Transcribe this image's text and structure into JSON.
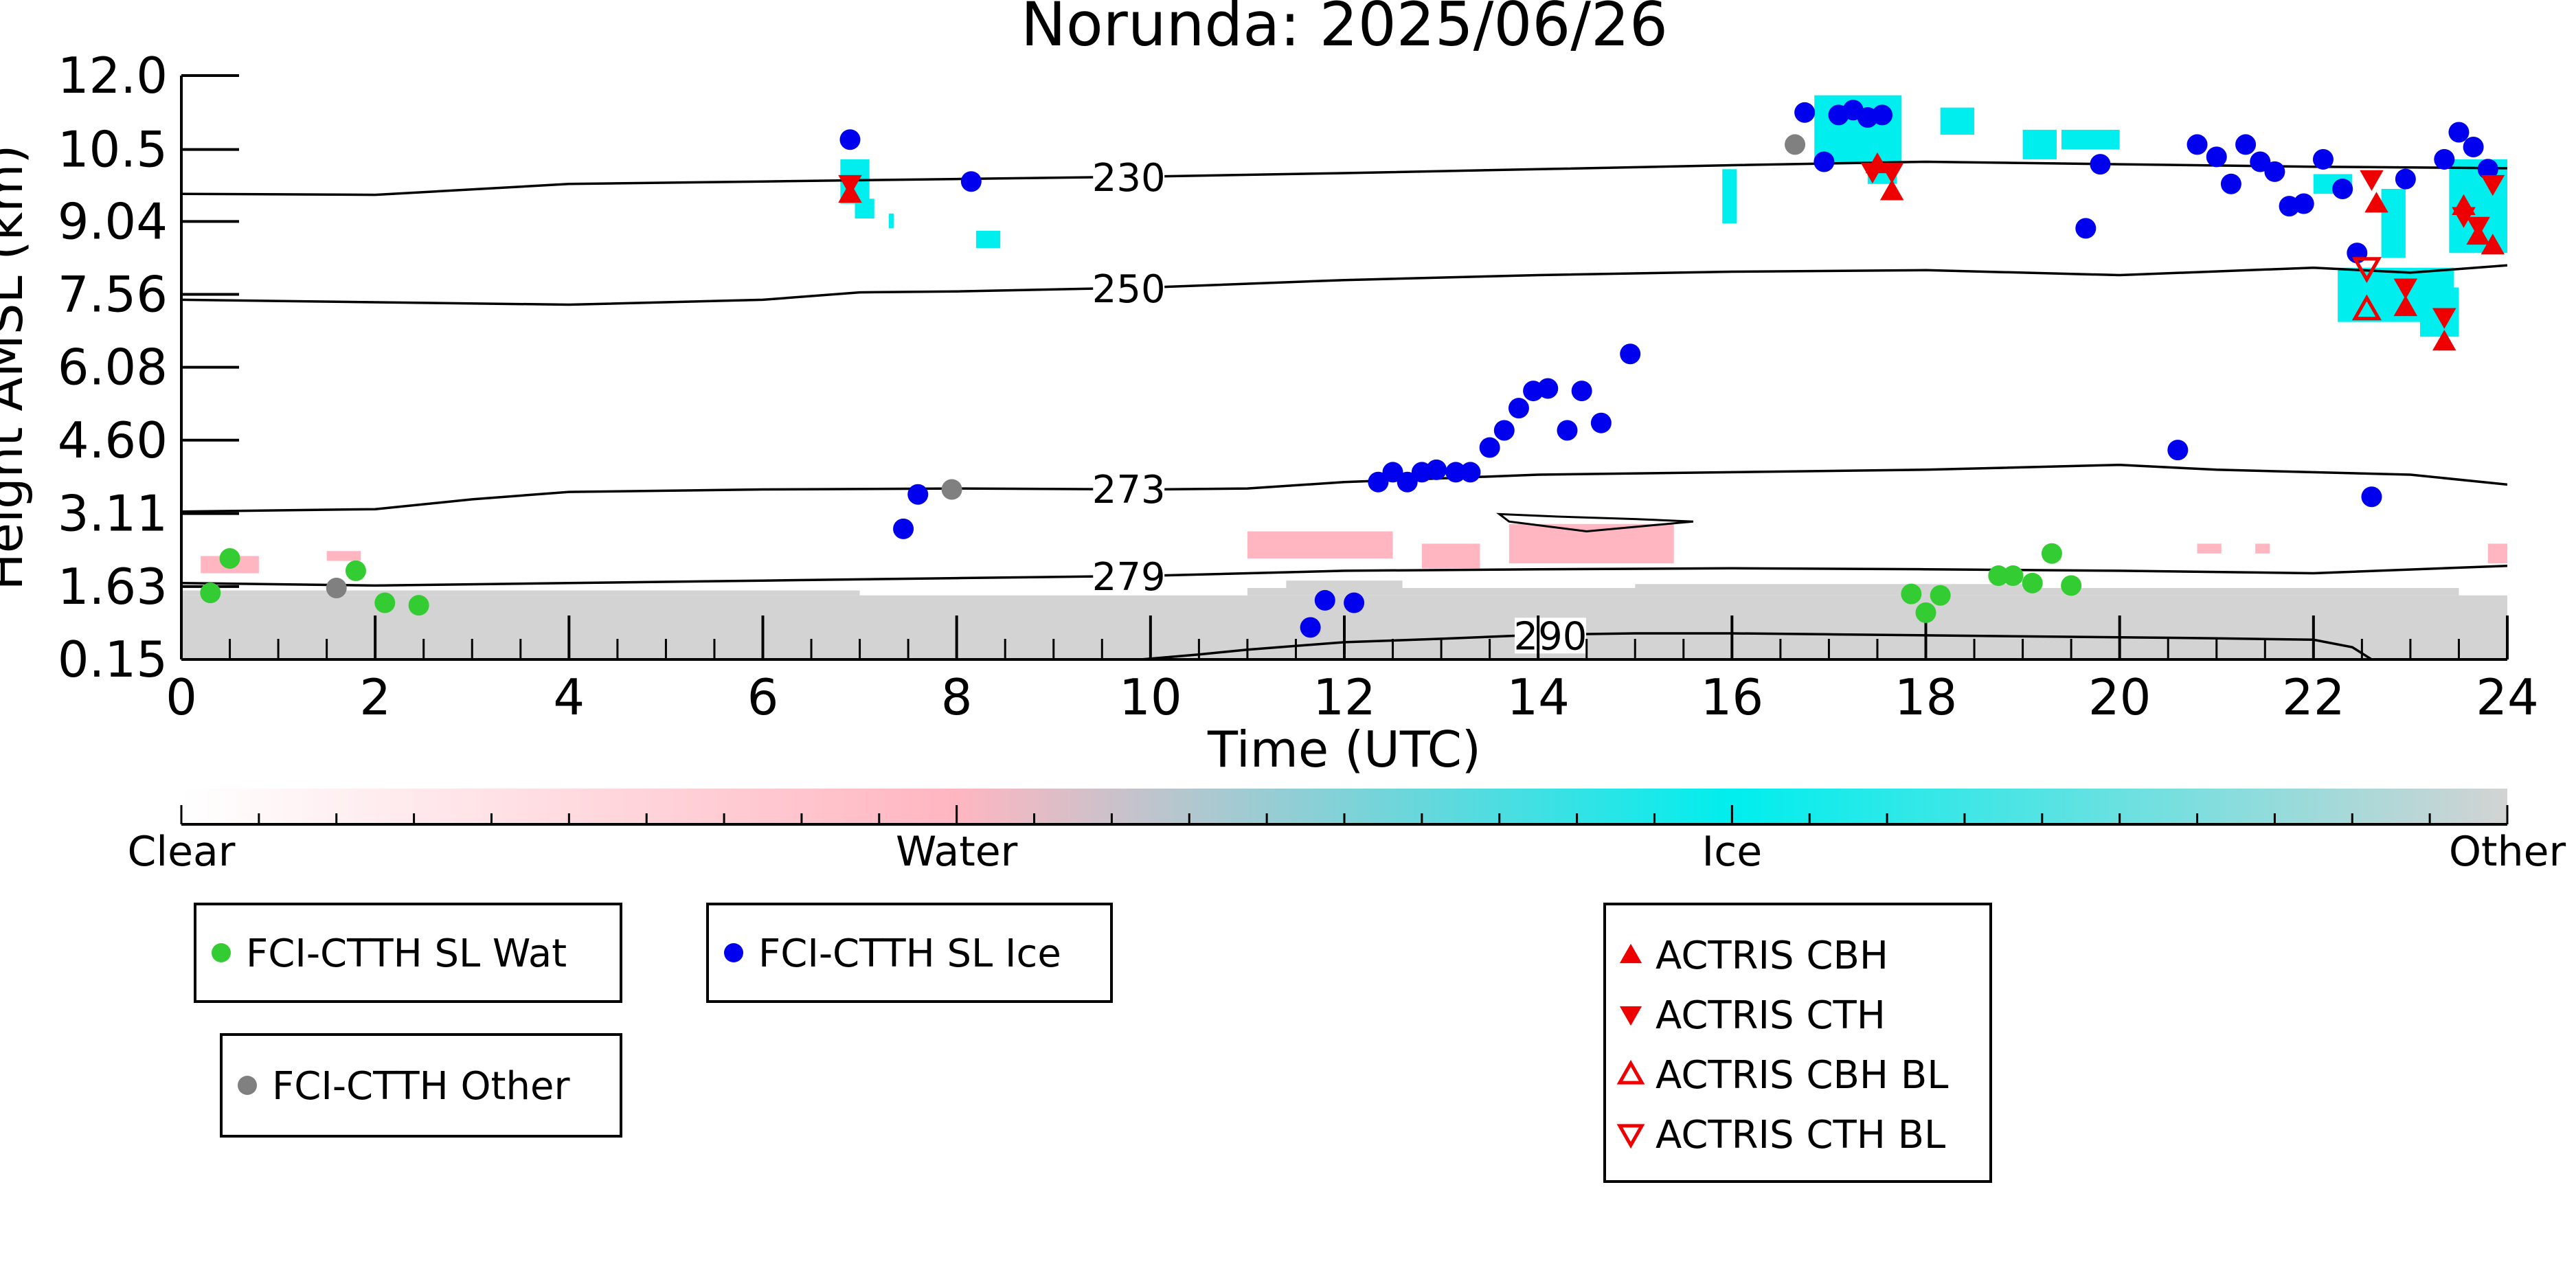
{
  "chart_data": {
    "type": "scatter",
    "title": "Norunda: 2025/06/26",
    "xlabel": "Time (UTC)",
    "ylabel": "Height AMSL (km)",
    "xlim": [
      0,
      24
    ],
    "ylim": [
      0.15,
      12.0
    ],
    "x_ticks": [
      "0",
      "2",
      "4",
      "6",
      "8",
      "10",
      "12",
      "14",
      "16",
      "18",
      "20",
      "22",
      "24"
    ],
    "y_ticks": [
      {
        "value": 0.15,
        "label": "0.15"
      },
      {
        "value": 1.63,
        "label": "1.63"
      },
      {
        "value": 3.11,
        "label": "3.11"
      },
      {
        "value": 4.6,
        "label": "4.60"
      },
      {
        "value": 6.08,
        "label": "6.08"
      },
      {
        "value": 7.56,
        "label": "7.56"
      },
      {
        "value": 9.04,
        "label": "9.04"
      },
      {
        "value": 10.5,
        "label": "10.5"
      },
      {
        "value": 12.0,
        "label": "12.0"
      }
    ],
    "grid": false,
    "contours": [
      {
        "label": "230",
        "label_x": 9.45,
        "points": [
          [
            0,
            9.6
          ],
          [
            2,
            9.58
          ],
          [
            4,
            9.8
          ],
          [
            6,
            9.85
          ],
          [
            8,
            9.9
          ],
          [
            10,
            9.95
          ],
          [
            12,
            10.02
          ],
          [
            14,
            10.1
          ],
          [
            16,
            10.18
          ],
          [
            18,
            10.25
          ],
          [
            20,
            10.2
          ],
          [
            22,
            10.15
          ],
          [
            24,
            10.12
          ]
        ]
      },
      {
        "label": "250",
        "label_x": 9.45,
        "points": [
          [
            0,
            7.45
          ],
          [
            2,
            7.4
          ],
          [
            4,
            7.35
          ],
          [
            6,
            7.45
          ],
          [
            7,
            7.6
          ],
          [
            8,
            7.62
          ],
          [
            10,
            7.7
          ],
          [
            12,
            7.85
          ],
          [
            14,
            7.95
          ],
          [
            16,
            8.02
          ],
          [
            18,
            8.05
          ],
          [
            20,
            7.95
          ],
          [
            22,
            8.1
          ],
          [
            23,
            8.0
          ],
          [
            24,
            8.15
          ]
        ]
      },
      {
        "label": "273",
        "label_x": 9.45,
        "points": [
          [
            0,
            3.15
          ],
          [
            2,
            3.2
          ],
          [
            3,
            3.4
          ],
          [
            4,
            3.55
          ],
          [
            6,
            3.6
          ],
          [
            8,
            3.62
          ],
          [
            10,
            3.6
          ],
          [
            11,
            3.62
          ],
          [
            12,
            3.75
          ],
          [
            14,
            3.9
          ],
          [
            16,
            3.95
          ],
          [
            18,
            4.0
          ],
          [
            20,
            4.1
          ],
          [
            21,
            4.0
          ],
          [
            23,
            3.9
          ],
          [
            24,
            3.7
          ]
        ]
      },
      {
        "label": "279",
        "label_x": 9.45,
        "points": [
          [
            0,
            1.7
          ],
          [
            2,
            1.65
          ],
          [
            4,
            1.7
          ],
          [
            6,
            1.75
          ],
          [
            8,
            1.8
          ],
          [
            10,
            1.85
          ],
          [
            12,
            1.95
          ],
          [
            14,
            1.98
          ],
          [
            16,
            2.0
          ],
          [
            18,
            1.98
          ],
          [
            20,
            1.95
          ],
          [
            22,
            1.9
          ],
          [
            24,
            2.05
          ]
        ]
      },
      {
        "label": "290",
        "label_x": 13.8,
        "points": [
          [
            9.9,
            0.15
          ],
          [
            10.5,
            0.25
          ],
          [
            11,
            0.35
          ],
          [
            12,
            0.5
          ],
          [
            13,
            0.57
          ],
          [
            14,
            0.65
          ],
          [
            15,
            0.68
          ],
          [
            16,
            0.68
          ],
          [
            17,
            0.66
          ],
          [
            18,
            0.64
          ],
          [
            20,
            0.6
          ],
          [
            21,
            0.58
          ],
          [
            22,
            0.55
          ],
          [
            22.4,
            0.4
          ],
          [
            22.6,
            0.15
          ]
        ]
      }
    ],
    "small_loop": [
      [
        13.6,
        3.1
      ],
      [
        14.2,
        3.05
      ],
      [
        15.0,
        3.0
      ],
      [
        15.6,
        2.95
      ],
      [
        14.5,
        2.75
      ],
      [
        13.7,
        2.95
      ]
    ],
    "series": [
      {
        "name": "FCI-CTTH SL Wat",
        "color": "#33cc33",
        "marker": "circle",
        "points": [
          [
            0.3,
            1.5
          ],
          [
            0.5,
            2.2
          ],
          [
            1.8,
            1.95
          ],
          [
            2.1,
            1.3
          ],
          [
            2.45,
            1.25
          ],
          [
            18.0,
            1.1
          ],
          [
            18.15,
            1.45
          ],
          [
            18.75,
            1.85
          ],
          [
            18.9,
            1.85
          ],
          [
            19.1,
            1.7
          ],
          [
            19.3,
            2.3
          ],
          [
            19.5,
            1.65
          ],
          [
            17.85,
            1.48
          ]
        ]
      },
      {
        "name": "FCI-CTTH SL Ice",
        "color": "#0000ee",
        "marker": "circle",
        "points": [
          [
            6.9,
            10.7
          ],
          [
            8.15,
            9.85
          ],
          [
            7.45,
            2.8
          ],
          [
            7.6,
            3.5
          ],
          [
            11.65,
            0.8
          ],
          [
            11.8,
            1.35
          ],
          [
            12.1,
            1.3
          ],
          [
            12.35,
            3.75
          ],
          [
            12.5,
            3.95
          ],
          [
            12.65,
            3.75
          ],
          [
            12.8,
            3.95
          ],
          [
            12.95,
            4.0
          ],
          [
            13.15,
            3.95
          ],
          [
            13.3,
            3.95
          ],
          [
            13.5,
            4.45
          ],
          [
            13.65,
            4.8
          ],
          [
            13.8,
            5.25
          ],
          [
            13.95,
            5.6
          ],
          [
            14.1,
            5.65
          ],
          [
            14.3,
            4.8
          ],
          [
            14.45,
            5.6
          ],
          [
            14.65,
            4.95
          ],
          [
            14.95,
            6.35
          ],
          [
            16.75,
            11.25
          ],
          [
            16.95,
            10.25
          ],
          [
            17.1,
            11.2
          ],
          [
            17.25,
            11.3
          ],
          [
            17.4,
            11.15
          ],
          [
            17.55,
            11.2
          ],
          [
            19.65,
            8.9
          ],
          [
            19.8,
            10.2
          ],
          [
            20.6,
            4.4
          ],
          [
            20.8,
            10.6
          ],
          [
            21.0,
            10.35
          ],
          [
            21.15,
            9.8
          ],
          [
            21.3,
            10.6
          ],
          [
            21.45,
            10.25
          ],
          [
            21.6,
            10.05
          ],
          [
            21.75,
            9.35
          ],
          [
            21.9,
            9.4
          ],
          [
            22.1,
            10.3
          ],
          [
            22.3,
            9.7
          ],
          [
            22.45,
            8.4
          ],
          [
            22.6,
            3.45
          ],
          [
            22.95,
            9.9
          ],
          [
            23.35,
            10.3
          ],
          [
            23.5,
            10.85
          ],
          [
            23.65,
            10.55
          ],
          [
            23.8,
            10.1
          ]
        ]
      },
      {
        "name": "FCI-CTTH Other",
        "color": "#808080",
        "marker": "circle",
        "points": [
          [
            1.6,
            1.6
          ],
          [
            7.95,
            3.6
          ],
          [
            16.65,
            10.6
          ]
        ]
      },
      {
        "name": "ACTRIS CBH",
        "color": "#ee0000",
        "marker": "triangle-up",
        "points": [
          [
            6.9,
            9.6
          ],
          [
            17.5,
            10.2
          ],
          [
            17.65,
            9.65
          ],
          [
            22.65,
            9.4
          ],
          [
            22.95,
            7.3
          ],
          [
            23.35,
            6.6
          ],
          [
            23.55,
            9.35
          ],
          [
            23.7,
            8.75
          ],
          [
            23.85,
            8.55
          ]
        ]
      },
      {
        "name": "ACTRIS CTH",
        "color": "#ee0000",
        "marker": "triangle-down",
        "points": [
          [
            6.9,
            9.8
          ],
          [
            17.45,
            10.05
          ],
          [
            17.65,
            10.05
          ],
          [
            22.6,
            9.9
          ],
          [
            22.95,
            7.7
          ],
          [
            23.35,
            7.1
          ],
          [
            23.55,
            9.15
          ],
          [
            23.7,
            8.95
          ],
          [
            23.85,
            9.8
          ]
        ]
      },
      {
        "name": "ACTRIS CBH BL",
        "color": "#ee0000",
        "marker": "triangle-up-open",
        "points": [
          [
            22.55,
            7.25
          ]
        ]
      },
      {
        "name": "ACTRIS CTH BL",
        "color": "#ee0000",
        "marker": "triangle-down-open",
        "points": [
          [
            22.55,
            8.1
          ]
        ]
      }
    ],
    "category_bands": [
      {
        "category": "Ice",
        "color": "#00eeee",
        "rects": [
          [
            6.8,
            9.4,
            0.3,
            0.9
          ],
          [
            6.95,
            9.1,
            0.2,
            0.4
          ],
          [
            8.2,
            8.5,
            0.25,
            0.35
          ],
          [
            7.3,
            8.9,
            0.05,
            0.3
          ],
          [
            15.9,
            9.0,
            0.15,
            1.1
          ],
          [
            16.85,
            10.2,
            0.9,
            1.4
          ],
          [
            17.4,
            9.8,
            0.3,
            0.5
          ],
          [
            18.15,
            10.8,
            0.35,
            0.55
          ],
          [
            19.0,
            10.3,
            0.35,
            0.6
          ],
          [
            19.4,
            10.5,
            0.6,
            0.4
          ],
          [
            22.25,
            7.0,
            1.2,
            1.1
          ],
          [
            22.7,
            8.3,
            0.25,
            1.4
          ],
          [
            23.1,
            6.7,
            0.4,
            1.0
          ],
          [
            23.4,
            8.4,
            0.6,
            1.9
          ],
          [
            22.0,
            9.6,
            0.4,
            0.4
          ]
        ]
      },
      {
        "category": "Water",
        "color": "#ffb6c1",
        "rects": [
          [
            0.2,
            1.9,
            0.6,
            0.35
          ],
          [
            1.5,
            2.15,
            0.35,
            0.2
          ],
          [
            11.0,
            2.2,
            1.5,
            0.55
          ],
          [
            12.8,
            2.0,
            0.6,
            0.5
          ],
          [
            13.7,
            2.1,
            1.7,
            0.8
          ],
          [
            20.8,
            2.3,
            0.25,
            0.2
          ],
          [
            21.4,
            2.3,
            0.15,
            0.2
          ],
          [
            23.8,
            2.1,
            0.2,
            0.4
          ]
        ]
      },
      {
        "category": "Other",
        "color": "#d3d3d3",
        "rects": [
          [
            0,
            0.15,
            24,
            1.3
          ],
          [
            0,
            1.45,
            7,
            0.1
          ],
          [
            11,
            1.45,
            12.5,
            0.15
          ],
          [
            11.4,
            1.6,
            1.2,
            0.15
          ],
          [
            15.0,
            1.6,
            4.0,
            0.08
          ]
        ]
      }
    ],
    "colorbar": {
      "labels": [
        "Clear",
        "Water",
        "Ice",
        "Other"
      ],
      "colors": [
        "#ffffff",
        "#ffb6c1",
        "#00eeee",
        "#d3d3d3"
      ]
    },
    "legends": [
      {
        "entries": [
          {
            "label": "FCI-CTTH SL Wat",
            "marker": "circle",
            "color": "#33cc33"
          }
        ]
      },
      {
        "entries": [
          {
            "label": "FCI-CTTH SL Ice",
            "marker": "circle",
            "color": "#0000ee"
          }
        ]
      },
      {
        "entries": [
          {
            "label": "FCI-CTTH Other",
            "marker": "circle",
            "color": "#808080"
          }
        ]
      },
      {
        "entries": [
          {
            "label": "ACTRIS CBH",
            "marker": "triangle-up",
            "color": "#ee0000"
          },
          {
            "label": "ACTRIS CTH",
            "marker": "triangle-down",
            "color": "#ee0000"
          },
          {
            "label": "ACTRIS CBH BL",
            "marker": "triangle-up-open",
            "color": "#ee0000"
          },
          {
            "label": "ACTRIS CTH BL",
            "marker": "triangle-down-open",
            "color": "#ee0000"
          }
        ]
      }
    ]
  }
}
